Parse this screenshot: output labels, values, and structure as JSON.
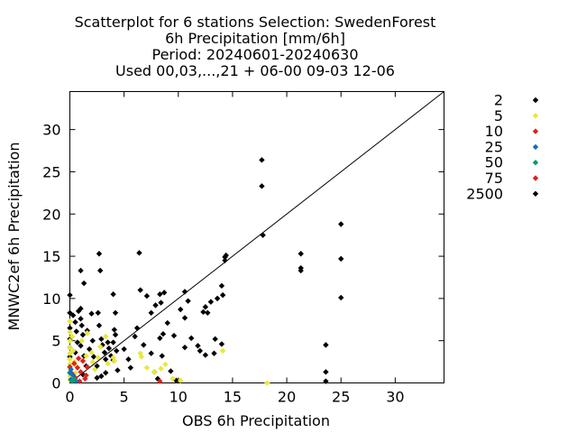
{
  "chart_data": {
    "type": "scatter",
    "title_lines": [
      "Scatterplot for    6 stations Selection: SwedenForest",
      "6h Precipitation [mm/6h]",
      "Period: 20240601-20240630",
      "Used 00,03,...,21 + 06-00 09-03 12-06"
    ],
    "xlabel": "OBS 6h Precipitation",
    "ylabel": "MNWC2ef 6h Precipitation",
    "xlim": [
      0,
      34.5
    ],
    "ylim": [
      0,
      34.5
    ],
    "xticks": [
      "0",
      "5",
      "10",
      "15",
      "20",
      "25",
      "30"
    ],
    "yticks": [
      "0",
      "5",
      "10",
      "15",
      "20",
      "25",
      "30"
    ],
    "grid": false,
    "legend_placement": "right",
    "diagonal_line": true,
    "series": [
      {
        "name": "2",
        "color": "#000000",
        "marker": "diamond",
        "points": [
          [
            0,
            10.4
          ],
          [
            0,
            8.3
          ],
          [
            0,
            6.5
          ],
          [
            0,
            5.2
          ],
          [
            0,
            4.2
          ],
          [
            0,
            3.1
          ],
          [
            0.3,
            8.0
          ],
          [
            0.5,
            7.2
          ],
          [
            0.6,
            6.1
          ],
          [
            0.8,
            8.5
          ],
          [
            0.7,
            4.8
          ],
          [
            0.5,
            3.6
          ],
          [
            1.0,
            8.8
          ],
          [
            1.0,
            7.6
          ],
          [
            1.1,
            6.8
          ],
          [
            1.2,
            5.7
          ],
          [
            1.0,
            4.4
          ],
          [
            1.3,
            3.2
          ],
          [
            1.5,
            2.0
          ],
          [
            1.2,
            1.0
          ],
          [
            1.0,
            13.3
          ],
          [
            1.3,
            11.8
          ],
          [
            1.6,
            6.2
          ],
          [
            1.8,
            4.0
          ],
          [
            2.0,
            8.2
          ],
          [
            2.1,
            5.0
          ],
          [
            2.2,
            3.1
          ],
          [
            2.5,
            2.0
          ],
          [
            2.6,
            8.3
          ],
          [
            2.7,
            6.8
          ],
          [
            2.7,
            15.3
          ],
          [
            2.8,
            13.3
          ],
          [
            2.9,
            5.2
          ],
          [
            3.0,
            4.5
          ],
          [
            3.2,
            3.6
          ],
          [
            3.3,
            2.8
          ],
          [
            3.5,
            4.8
          ],
          [
            3.6,
            4.1
          ],
          [
            3.8,
            3.2
          ],
          [
            4.0,
            4.8
          ],
          [
            4.1,
            6.3
          ],
          [
            4.2,
            5.7
          ],
          [
            4.3,
            3.8
          ],
          [
            4.0,
            2.7
          ],
          [
            4.4,
            1.5
          ],
          [
            3.3,
            1.2
          ],
          [
            2.9,
            0.8
          ],
          [
            2.5,
            0.6
          ],
          [
            4.0,
            10.5
          ],
          [
            4.2,
            8.3
          ],
          [
            5.0,
            4.0
          ],
          [
            5.4,
            2.8
          ],
          [
            5.6,
            1.8
          ],
          [
            6.0,
            5.5
          ],
          [
            6.2,
            6.5
          ],
          [
            6.4,
            15.4
          ],
          [
            6.5,
            11.0
          ],
          [
            6.8,
            4.5
          ],
          [
            7.1,
            10.3
          ],
          [
            7.5,
            3.5
          ],
          [
            7.8,
            1.3
          ],
          [
            7.9,
            9.2
          ],
          [
            7.5,
            8.3
          ],
          [
            8.3,
            10.5
          ],
          [
            8.7,
            10.7
          ],
          [
            8.4,
            9.5
          ],
          [
            8.6,
            5.8
          ],
          [
            8.3,
            5.3
          ],
          [
            8.5,
            3.2
          ],
          [
            8.1,
            0.5
          ],
          [
            9.0,
            7.1
          ],
          [
            9.3,
            1.4
          ],
          [
            9.6,
            5.6
          ],
          [
            9.8,
            0.3
          ],
          [
            10.2,
            8.7
          ],
          [
            10.6,
            10.8
          ],
          [
            10.9,
            9.7
          ],
          [
            10.6,
            7.7
          ],
          [
            10.6,
            4.2
          ],
          [
            11.2,
            5.3
          ],
          [
            11.8,
            4.4
          ],
          [
            12.0,
            3.8
          ],
          [
            12.3,
            8.4
          ],
          [
            12.5,
            9.0
          ],
          [
            12.7,
            8.3
          ],
          [
            12.5,
            3.3
          ],
          [
            13.0,
            9.6
          ],
          [
            13.3,
            3.5
          ],
          [
            13.4,
            5.2
          ],
          [
            13.6,
            10.0
          ],
          [
            14.0,
            11.5
          ],
          [
            14.1,
            10.4
          ],
          [
            14.0,
            4.6
          ],
          [
            14.3,
            14.9
          ],
          [
            14.3,
            14.5
          ],
          [
            14.4,
            15.1
          ],
          [
            17.7,
            26.4
          ],
          [
            17.7,
            23.3
          ],
          [
            17.8,
            17.5
          ],
          [
            21.3,
            15.3
          ],
          [
            21.3,
            13.3
          ],
          [
            21.3,
            13.6
          ],
          [
            23.6,
            4.5
          ],
          [
            23.6,
            1.3
          ],
          [
            23.6,
            0.2
          ],
          [
            25.0,
            18.8
          ],
          [
            25.0,
            14.7
          ],
          [
            25.0,
            10.1
          ]
        ]
      },
      {
        "name": "5",
        "color": "#e8e83a",
        "marker": "diamond",
        "points": [
          [
            0,
            7.3
          ],
          [
            0,
            6.0
          ],
          [
            0,
            5.0
          ],
          [
            0,
            4.2
          ],
          [
            0,
            3.5
          ],
          [
            0,
            2.8
          ],
          [
            0,
            2.2
          ],
          [
            0,
            1.8
          ],
          [
            0,
            1.3
          ],
          [
            0,
            0.8
          ],
          [
            0,
            0.4
          ],
          [
            0.2,
            5.5
          ],
          [
            0.3,
            3.8
          ],
          [
            0.4,
            2.5
          ],
          [
            0.5,
            1.2
          ],
          [
            0.6,
            2.0
          ],
          [
            1.1,
            5.0
          ],
          [
            1.5,
            3.2
          ],
          [
            1.6,
            5.9
          ],
          [
            2.0,
            3.6
          ],
          [
            2.1,
            2.5
          ],
          [
            2.3,
            1.6
          ],
          [
            2.6,
            3.0
          ],
          [
            2.8,
            4.3
          ],
          [
            3.3,
            5.5
          ],
          [
            3.5,
            2.3
          ],
          [
            4.0,
            3.0
          ],
          [
            4.1,
            2.6
          ],
          [
            6.6,
            3.1
          ],
          [
            6.5,
            3.5
          ],
          [
            7.1,
            1.8
          ],
          [
            7.8,
            1.3
          ],
          [
            8.4,
            1.7
          ],
          [
            8.8,
            2.2
          ],
          [
            9.5,
            0.5
          ],
          [
            10.2,
            0.3
          ],
          [
            14.1,
            3.8
          ],
          [
            18.2,
            0
          ]
        ]
      },
      {
        "name": "10",
        "color": "#e02020",
        "marker": "diamond",
        "points": [
          [
            0,
            1.9
          ],
          [
            0.2,
            1.1
          ],
          [
            0.4,
            2.3
          ],
          [
            0.5,
            0.6
          ],
          [
            0.7,
            1.8
          ],
          [
            0.9,
            0.2
          ],
          [
            1.0,
            1.3
          ],
          [
            1.2,
            2.6
          ],
          [
            1.4,
            0.5
          ],
          [
            1.5,
            0.9
          ],
          [
            1.6,
            1.9
          ],
          [
            0.8,
            2.9
          ],
          [
            8.3,
            0.2
          ]
        ]
      },
      {
        "name": "25",
        "color": "#1070c0",
        "marker": "diamond",
        "points": [
          [
            0,
            1.2
          ],
          [
            0.1,
            0.4
          ],
          [
            0.3,
            0.9
          ],
          [
            0.6,
            0.2
          ],
          [
            0.1,
            1.6
          ]
        ]
      },
      {
        "name": "50",
        "color": "#009e73",
        "marker": "diamond",
        "points": [
          [
            0.2,
            0.2
          ],
          [
            0.4,
            0.4
          ]
        ]
      },
      {
        "name": "75",
        "color": "#e02020",
        "marker": "diamond",
        "points": []
      },
      {
        "name": "2500",
        "color": "#000000",
        "marker": "diamond",
        "points": []
      }
    ]
  }
}
